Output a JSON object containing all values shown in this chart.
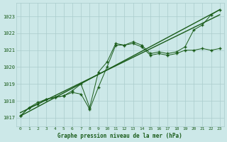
{
  "title": "Graphe pression niveau de la mer (hPa)",
  "bg_color": "#cce8e8",
  "grid_color": "#aacccc",
  "line_color": "#1a5c1a",
  "xlim": [
    -0.5,
    23.5
  ],
  "ylim": [
    1016.5,
    1023.8
  ],
  "yticks": [
    1017,
    1018,
    1019,
    1020,
    1021,
    1022,
    1023
  ],
  "xticks": [
    0,
    1,
    2,
    3,
    4,
    5,
    6,
    7,
    8,
    9,
    10,
    11,
    12,
    13,
    14,
    15,
    16,
    17,
    18,
    19,
    20,
    21,
    22,
    23
  ],
  "series_zigzag_x": [
    0,
    1,
    2,
    3,
    4,
    5,
    6,
    7,
    8,
    9,
    10,
    11,
    12,
    13,
    14,
    15,
    16,
    17,
    18,
    19,
    20,
    21,
    22,
    23
  ],
  "series_zigzag_y": [
    1017.1,
    1017.6,
    1017.8,
    1018.1,
    1018.2,
    1018.3,
    1018.5,
    1018.4,
    1017.5,
    1018.8,
    1020.0,
    1021.3,
    1021.3,
    1021.4,
    1021.2,
    1020.7,
    1020.8,
    1020.7,
    1020.8,
    1021.0,
    1021.0,
    1021.1,
    1021.0,
    1021.1
  ],
  "series_smooth_x": [
    0,
    1,
    2,
    3,
    4,
    5,
    6,
    7,
    8,
    9,
    10,
    11,
    12,
    13,
    14,
    15,
    16,
    17,
    18,
    19,
    20,
    21,
    22,
    23
  ],
  "series_smooth_y": [
    1017.1,
    1017.6,
    1017.9,
    1018.1,
    1018.2,
    1018.3,
    1018.6,
    1019.0,
    1017.6,
    1019.7,
    1020.3,
    1021.4,
    1021.3,
    1021.5,
    1021.3,
    1020.8,
    1020.9,
    1020.8,
    1020.9,
    1021.2,
    1022.2,
    1022.5,
    1023.1,
    1023.4
  ],
  "series_trend1_x": [
    0,
    23
  ],
  "series_trend1_y": [
    1017.1,
    1023.4
  ],
  "series_trend2_x": [
    0,
    23
  ],
  "series_trend2_y": [
    1017.3,
    1023.1
  ]
}
